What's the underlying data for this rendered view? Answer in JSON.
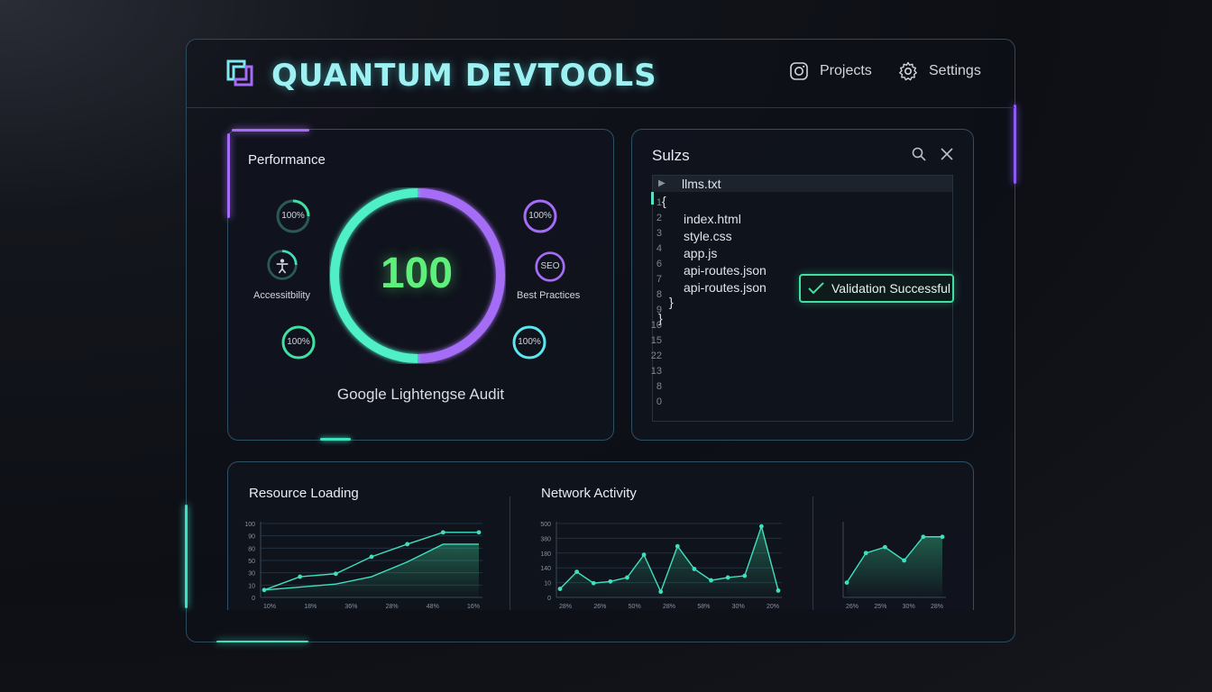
{
  "header": {
    "brand": "QUANTUM DEVTOOLS",
    "nav": [
      {
        "label": "Projects",
        "icon": "instagram-icon"
      },
      {
        "label": "Settings",
        "icon": "gear-icon"
      }
    ]
  },
  "performance": {
    "title": "Performance",
    "score": "100",
    "audit_label": "Google Lightengse Audit",
    "rings": [
      {
        "text": "100%"
      },
      {
        "text": "100%"
      },
      {
        "text": "100%"
      },
      {
        "text": "100%"
      },
      {
        "text": "SEO"
      }
    ],
    "labels": {
      "accessibility": "Accessitbility",
      "best_practices": "Best Practices"
    }
  },
  "files": {
    "title": "Sulzs",
    "tab": "llms.txt",
    "line_numbers": [
      "1",
      "2",
      "3",
      "4",
      "6",
      "7",
      "8",
      "9",
      "10",
      "15",
      "22",
      "13",
      "8",
      "0"
    ],
    "code_lines": [
      "{",
      "index.html",
      "style.css",
      "app.js",
      "api-routes.json",
      "api-routes.json",
      "}",
      "}"
    ],
    "validation": "Validation Successful"
  },
  "charts": [
    {
      "title": "Resource Loading",
      "chart_data": {
        "type": "line",
        "y_ticks": [
          "100",
          "90",
          "80",
          "50",
          "30",
          "10",
          "0"
        ],
        "x_ticks": [
          "10%",
          "18%",
          "36%",
          "28%",
          "48%",
          "16%"
        ],
        "series": [
          {
            "values": [
              10,
              28,
              32,
              55,
              72,
              88,
              88
            ]
          },
          {
            "values": [
              10,
              14,
              18,
              28,
              48,
              72,
              72
            ]
          }
        ]
      }
    },
    {
      "title": "Network Activity",
      "chart_data": {
        "type": "area",
        "y_ticks": [
          "500",
          "380",
          "180",
          "140",
          "10",
          "0"
        ],
        "x_ticks": [
          "28%",
          "26%",
          "50%",
          "28%",
          "58%",
          "30%",
          "20%"
        ],
        "series": [
          {
            "values": [
              15,
              45,
              25,
              28,
              35,
              75,
              10,
              90,
              50,
              30,
              35,
              38,
              125,
              12
            ]
          }
        ]
      }
    },
    {
      "title": "",
      "chart_data": {
        "type": "area",
        "x_ticks": [
          "26%",
          "25%",
          "30%",
          "28%"
        ],
        "series": [
          {
            "values": [
              20,
              60,
              68,
              50,
              82,
              82
            ]
          }
        ]
      }
    }
  ]
}
